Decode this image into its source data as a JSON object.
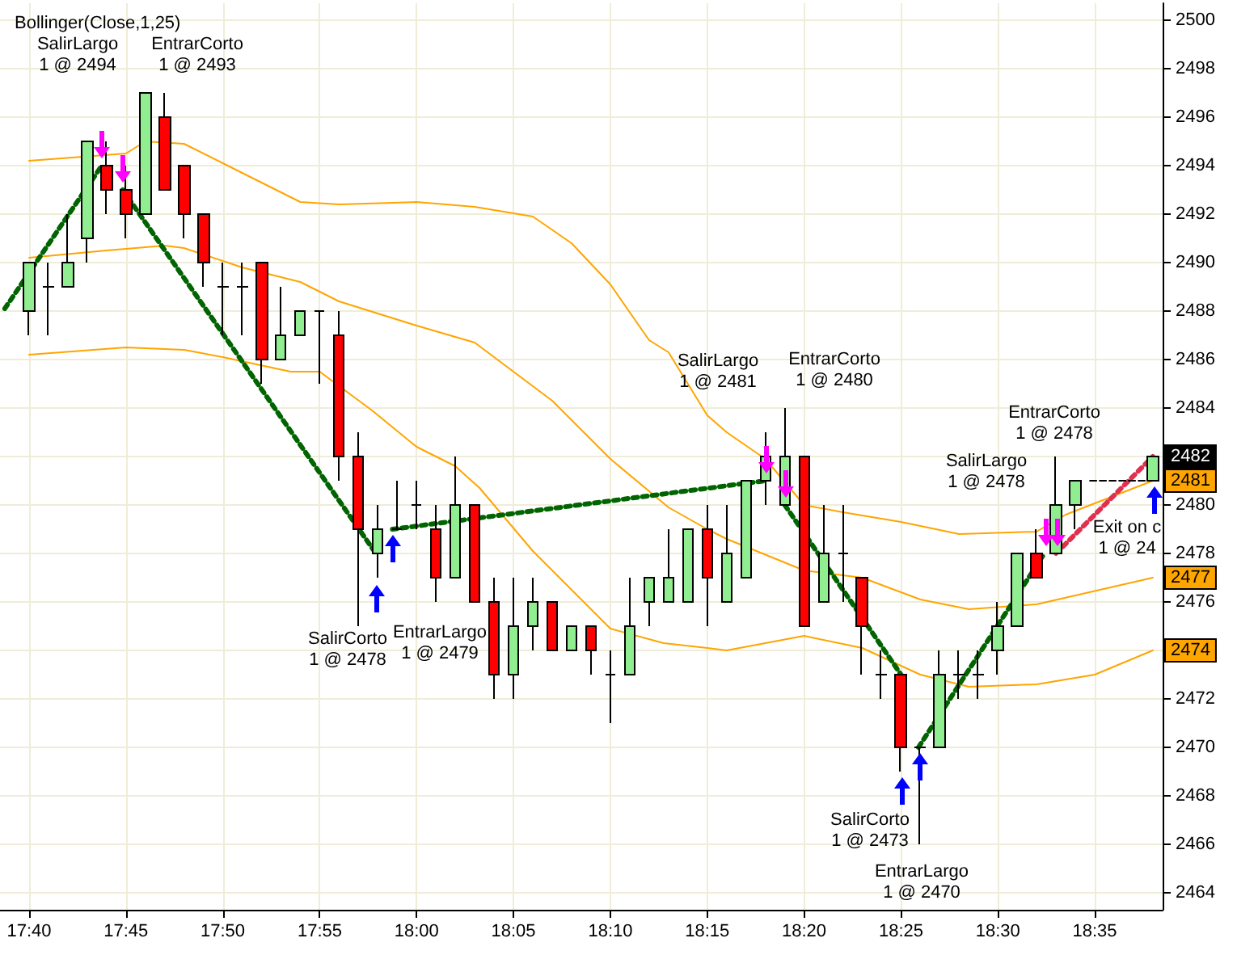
{
  "chart_data": {
    "type": "candlestick",
    "title": "Bollinger(Close,1,25)",
    "x": [
      17.6667,
      17.6833,
      17.7,
      17.7167,
      17.7333,
      17.75,
      17.7667,
      17.7833,
      17.8,
      17.8167,
      17.8333,
      17.85,
      17.8667,
      17.8833,
      17.9,
      17.9167,
      17.9333,
      17.95,
      17.9667,
      17.9833,
      18,
      18.0167,
      18.0333,
      18.05,
      18.0667,
      18.0833,
      18.1,
      18.1167,
      18.1333,
      18.15,
      18.1667,
      18.1833,
      18.2,
      18.2167,
      18.2333,
      18.25,
      18.2667,
      18.2833,
      18.3,
      18.3167,
      18.3333,
      18.35,
      18.3667,
      18.3833,
      18.4,
      18.4167,
      18.4333,
      18.45,
      18.4667,
      18.4833,
      18.5,
      18.5167,
      18.5333,
      18.55,
      18.5667,
      18.6333
    ],
    "ohlc": [
      [
        2488,
        2490,
        2487,
        2490
      ],
      [
        2489,
        2490,
        2487,
        2489
      ],
      [
        2489,
        2492,
        2489,
        2490
      ],
      [
        2491,
        2495,
        2490,
        2495
      ],
      [
        2494,
        2495,
        2492,
        2493
      ],
      [
        2493,
        2494,
        2491,
        2492
      ],
      [
        2492,
        2497,
        2492,
        2497
      ],
      [
        2496,
        2497,
        2493,
        2493
      ],
      [
        2494,
        2494,
        2491,
        2492
      ],
      [
        2492,
        2492,
        2489,
        2490
      ],
      [
        2489,
        2490,
        2487,
        2489
      ],
      [
        2489,
        2490,
        2487,
        2489
      ],
      [
        2490,
        2490,
        2485,
        2486
      ],
      [
        2486,
        2489,
        2486,
        2487
      ],
      [
        2487,
        2488,
        2487,
        2488
      ],
      [
        2488,
        2488,
        2485,
        2488
      ],
      [
        2487,
        2488,
        2481,
        2482
      ],
      [
        2482,
        2483,
        2475,
        2479
      ],
      [
        2478,
        2480,
        2477,
        2479
      ],
      [
        2479,
        2481,
        2479,
        2479
      ],
      [
        2480,
        2481,
        2479,
        2480
      ],
      [
        2479,
        2480,
        2476,
        2477
      ],
      [
        2477,
        2482,
        2477,
        2480
      ],
      [
        2480,
        2480,
        2476,
        2476
      ],
      [
        2476,
        2477,
        2472,
        2473
      ],
      [
        2473,
        2477,
        2472,
        2475
      ],
      [
        2475,
        2477,
        2474,
        2476
      ],
      [
        2476,
        2476,
        2474,
        2474
      ],
      [
        2474,
        2475,
        2474,
        2475
      ],
      [
        2475,
        2475,
        2473,
        2474
      ],
      [
        2473,
        2474,
        2471,
        2473
      ],
      [
        2473,
        2477,
        2473,
        2475
      ],
      [
        2476,
        2477,
        2475,
        2477
      ],
      [
        2476,
        2479,
        2476,
        2477
      ],
      [
        2476,
        2479,
        2476,
        2479
      ],
      [
        2479,
        2480,
        2475,
        2477
      ],
      [
        2476,
        2480,
        2476,
        2478
      ],
      [
        2477,
        2481,
        2477,
        2481
      ],
      [
        2481,
        2483,
        2480,
        2482
      ],
      [
        2480,
        2484,
        2480,
        2482
      ],
      [
        2482,
        2482,
        2475,
        2475
      ],
      [
        2476,
        2480,
        2476,
        2478
      ],
      [
        2478,
        2480,
        2476,
        2478
      ],
      [
        2477,
        2477,
        2473,
        2475
      ],
      [
        2473,
        2474,
        2472,
        2473
      ],
      [
        2473,
        2473,
        2469,
        2470
      ],
      [
        2470,
        2470,
        2466,
        2470
      ],
      [
        2470,
        2474,
        2470,
        2473
      ],
      [
        2473,
        2474,
        2472,
        2473
      ],
      [
        2473,
        2474,
        2472,
        2473
      ],
      [
        2474,
        2476,
        2473,
        2475
      ],
      [
        2475,
        2478,
        2475,
        2478
      ],
      [
        2478,
        2479,
        2477,
        2477
      ],
      [
        2478,
        2482,
        2478,
        2480
      ],
      [
        2480,
        2481,
        2479,
        2481
      ],
      [
        2481,
        2482,
        2481,
        2482
      ]
    ],
    "series": [
      {
        "type": "line",
        "color": "#ffa500",
        "x": [
          17.6667,
          17.75,
          17.7667,
          17.8,
          17.85,
          17.9,
          17.9333,
          18,
          18.05,
          18.1,
          18.1333,
          18.1667,
          18.2,
          18.2167,
          18.25,
          18.2667,
          18.3,
          18.3333,
          18.3667,
          18.4167,
          18.4667,
          18.5333,
          18.5583,
          18.6333
        ],
        "values": [
          2494.2,
          2494.5,
          2495.0,
          2494.9,
          2493.7,
          2492.5,
          2492.4,
          2492.5,
          2492.3,
          2491.9,
          2490.8,
          2489.1,
          2486.8,
          2486.3,
          2483.7,
          2483.0,
          2481.9,
          2480.0,
          2479.7,
          2479.3,
          2478.8,
          2478.9,
          2479.6,
          2481
        ]
      },
      {
        "type": "line",
        "color": "#ffa500",
        "x": [
          17.6667,
          17.7333,
          17.7833,
          17.8,
          17.85,
          17.9,
          17.9333,
          18,
          18.05,
          18.1167,
          18.1667,
          18.2167,
          18.25,
          18.2667,
          18.3333,
          18.3833,
          18.4333,
          18.475,
          18.5333,
          18.6333
        ],
        "values": [
          2490.2,
          2490.5,
          2490.7,
          2490.6,
          2489.8,
          2489.2,
          2488.4,
          2487.4,
          2486.7,
          2484.3,
          2481.9,
          2479.9,
          2479.0,
          2478.6,
          2477.3,
          2477.0,
          2476.1,
          2475.7,
          2475.9,
          2477
        ]
      },
      {
        "type": "line",
        "color": "#ffa500",
        "x": [
          17.6667,
          17.75,
          17.8,
          17.8333,
          17.8917,
          17.9167,
          17.9617,
          18,
          18.0333,
          18.0542,
          18.1,
          18.1667,
          18.2125,
          18.25,
          18.2667,
          18.3333,
          18.3833,
          18.4333,
          18.475,
          18.5333,
          18.5833,
          18.6333
        ],
        "values": [
          2486.2,
          2486.5,
          2486.4,
          2486.1,
          2485.5,
          2485.5,
          2483.9,
          2482.4,
          2481.6,
          2480.7,
          2478.1,
          2474.9,
          2474.3,
          2474.1,
          2474.0,
          2474.6,
          2474.1,
          2473.0,
          2472.5,
          2472.6,
          2473.0,
          2474
        ]
      },
      {
        "type": "line",
        "color": "#006400",
        "line_style": "dotted",
        "x": [
          17.6458,
          17.7292
        ],
        "values": [
          2488.1,
          2494
        ]
      },
      {
        "type": "line",
        "color": "#006400",
        "line_style": "dotted",
        "x": [
          17.7472,
          17.965
        ],
        "values": [
          2493,
          2478
        ]
      },
      {
        "type": "line",
        "color": "#006400",
        "line_style": "dotted",
        "x": [
          17.9792,
          18.3
        ],
        "values": [
          2479,
          2481
        ]
      },
      {
        "type": "line",
        "color": "#006400",
        "line_style": "dotted",
        "x": [
          18.3167,
          18.4167
        ],
        "values": [
          2480,
          2473
        ]
      },
      {
        "type": "line",
        "color": "#006400",
        "line_style": "dotted",
        "x": [
          18.4317,
          18.54
        ],
        "values": [
          2470,
          2478
        ]
      },
      {
        "type": "line",
        "color": "#e0304e",
        "line_style": "dotted",
        "x": [
          18.55,
          18.6333
        ],
        "values": [
          2478,
          2482
        ]
      },
      {
        "type": "line",
        "color": "#000000",
        "line_style": "dashed",
        "x": [
          18.5792,
          18.6333
        ],
        "values": [
          2481,
          2481
        ]
      }
    ],
    "annotations": [
      "SalirLargo\n1 @ 2494",
      "EntrarCorto\n1 @ 2493",
      "EntrarLargo\n1 @ 2479",
      "SalirCorto\n1 @ 2478",
      "EntrarCorto\n1 @ 2480",
      "SalirLargo\n1 @ 2481",
      "SalirCorto\n1 @ 2473",
      "EntrarLargo\n1 @ 2470",
      "EntrarCorto\n1 @ 2478",
      "SalirLargo\n1 @ 2478",
      "Exit on c\n1 @ 24",
      "2482",
      "2481",
      "2477",
      "2474"
    ],
    "xlim": [
      17.6417,
      18.6417
    ],
    "xticks": [
      {
        "value": 17.6667,
        "label": "17:40"
      },
      {
        "value": 17.75,
        "label": "17:45"
      },
      {
        "value": 17.8333,
        "label": "17:50"
      },
      {
        "value": 17.9167,
        "label": "17:55"
      },
      {
        "value": 18,
        "label": "18:00"
      },
      {
        "value": 18.0833,
        "label": "18:05"
      },
      {
        "value": 18.1667,
        "label": "18:10"
      },
      {
        "value": 18.25,
        "label": "18:15"
      },
      {
        "value": 18.3333,
        "label": "18:20"
      },
      {
        "value": 18.4167,
        "label": "18:25"
      },
      {
        "value": 18.5,
        "label": "18:30"
      },
      {
        "value": 18.5833,
        "label": "18:35"
      }
    ],
    "ylim": [
      2463.3,
      2500.7
    ],
    "yticks": [
      2464,
      2466,
      2468,
      2470,
      2472,
      2474,
      2476,
      2478,
      2480,
      2482,
      2484,
      2486,
      2488,
      2490,
      2492,
      2494,
      2496,
      2498,
      2500
    ],
    "grid": true
  }
}
